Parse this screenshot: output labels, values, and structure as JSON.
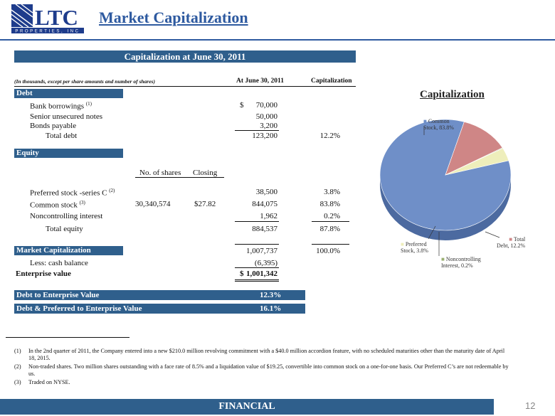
{
  "header": {
    "logo_text": "LTC",
    "logo_subtext": "PROPERTIES, INC",
    "title": "Market Capitalization"
  },
  "table": {
    "banner": "Capitalization at June 30, 2011",
    "note": "(In thousands, except per share amounts and number of shares)",
    "col_at": "At June 30, 2011",
    "col_cap": "Capitalization",
    "debt": {
      "label": "Debt",
      "bank": "Bank borrowings",
      "bank_fn": "(1)",
      "bank_sym": "$",
      "bank_val": "70,000",
      "senior": "Senior unsecured notes",
      "senior_val": "50,000",
      "bonds": "Bonds payable",
      "bonds_val": "3,200",
      "total": "Total debt",
      "total_val": "123,200",
      "total_pct": "12.2%"
    },
    "equity": {
      "label": "Equity",
      "shares_hdr": "No. of shares",
      "closing_hdr": "Closing",
      "pref": "Preferred stock -series C",
      "pref_fn": "(2)",
      "pref_val": "38,500",
      "pref_pct": "3.8%",
      "common": "Common stock",
      "common_fn": "(3)",
      "common_shares": "30,340,574",
      "common_close": "$27.82",
      "common_val": "844,075",
      "common_pct": "83.8%",
      "nci": "Noncontrolling interest",
      "nci_val": "1,962",
      "nci_pct": "0.2%",
      "total": "Total equity",
      "total_val": "884,537",
      "total_pct": "87.8%"
    },
    "market": {
      "label": "Market Capitalization",
      "val": "1,007,737",
      "pct": "100.0%",
      "cash": "Less:  cash balance",
      "cash_val": "(6,395)",
      "ev": "Enterprise value",
      "ev_sym": "$",
      "ev_val": "1,001,342"
    },
    "ratios": {
      "debt_ev": "Debt to Enterprise Value",
      "debt_ev_val": "12.3%",
      "debt_pref_ev": "Debt & Preferred to Enterprise Value",
      "debt_pref_ev_val": "16.1%"
    }
  },
  "footnotes": [
    {
      "n": "(1)",
      "t": "In the 2nd quarter of  2011, the Company entered into a new $210.0 million revolving commitment with a $40.0 million accordion feature, with no scheduled maturities other than the maturity date of April 18, 2015."
    },
    {
      "n": "(2)",
      "t": "Non-traded shares.  Two million shares outstanding with a face rate of 8.5% and a liquidation value of $19.25, convertible into common stock on a one-for-one basis.  Our Preferred C’s are not redeemable by us."
    },
    {
      "n": "(3)",
      "t": "Traded on NYSE."
    }
  ],
  "footer": {
    "label": "FINANCIAL",
    "page": "12"
  },
  "colors": {
    "brand": "#2e5aa0",
    "bar": "#2f5f8c",
    "common": "#6f8fc8",
    "debt": "#cf8686",
    "preferred": "#eeeebb",
    "nci": "#9ab070"
  },
  "chart_data": {
    "type": "pie",
    "title": "Capitalization",
    "slices": [
      {
        "name": "Common Stock",
        "value": 83.8,
        "label_l1": "Common",
        "label_l2": "Stock, 83.8%"
      },
      {
        "name": "Total Debt",
        "value": 12.2,
        "label_l1": "Total",
        "label_l2": "Debt, 12.2%"
      },
      {
        "name": "Noncontrolling Interest",
        "value": 0.2,
        "label_l1": "Noncontrolling",
        "label_l2": "Interest, 0.2%"
      },
      {
        "name": "Preferred Stock",
        "value": 3.8,
        "label_l1": "Preferred",
        "label_l2": "Stock, 3.8%"
      }
    ]
  }
}
